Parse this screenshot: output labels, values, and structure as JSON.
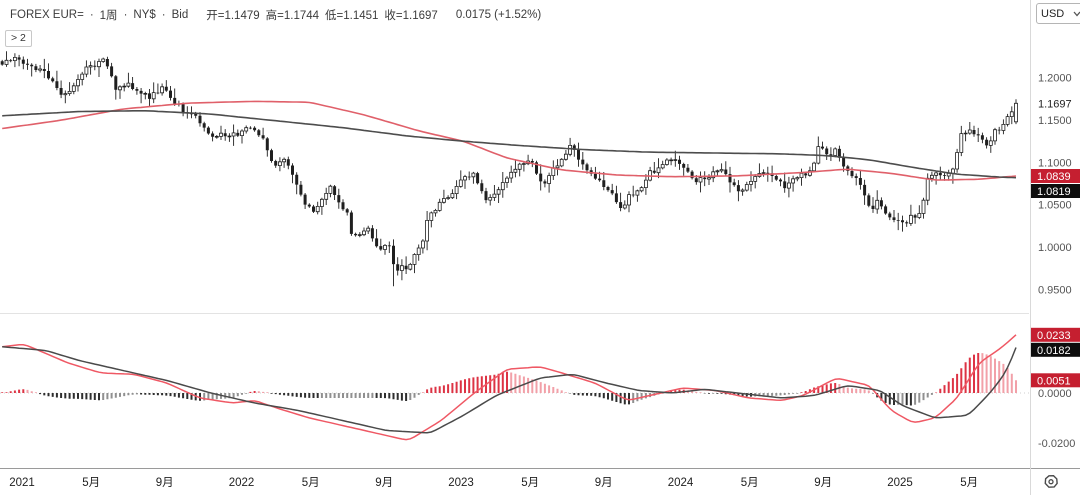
{
  "header": {
    "symbol": "FOREX EUR=",
    "separator": "·",
    "interval": "1周",
    "venue": "NY$",
    "side": "Bid",
    "open": "开=1.1479",
    "high": "高=1.1744",
    "low": "低=1.1451",
    "close": "收=1.1697",
    "change": "0.0175 (+1.52%)"
  },
  "currency_selector": {
    "value": "USD"
  },
  "panel_restore_button": {
    "label": "> 2"
  },
  "colors": {
    "header_text": "#3c3c3c",
    "axis_text": "#555555",
    "last_price_text": "#222222",
    "x_label_text": "#222222",
    "candle_stroke": "#1f1f1f",
    "candle_up_fill": "#ffffff",
    "candle_down_fill": "#1f1f1f",
    "ma_red": "#e0606a",
    "ma_black": "#4d4d4d",
    "macd_red": "#ef5864",
    "macd_black": "#4a4a4a",
    "hist_pos": "#dd3344",
    "hist_pos_pale": "#f2a0a8",
    "hist_neg": "#2e2e2e",
    "hist_neg_pale": "#909090",
    "badge_red_bg": "#c51f30",
    "badge_black_bg": "#0d0d0d",
    "badge_text": "#ffffff",
    "separator_line": "#e3e3e3",
    "bottom_axis_line": "#9a9a9a",
    "axis_divider": "#d9d9d9",
    "zero_line": "#cfcfcf"
  },
  "price_axis": {
    "ticks": [
      {
        "price": 1.2,
        "label": "1.2000"
      },
      {
        "price": 1.15,
        "label": "1.1500"
      },
      {
        "price": 1.1,
        "label": "1.1000"
      },
      {
        "price": 1.05,
        "label": "1.0500"
      },
      {
        "price": 1.0,
        "label": "1.0000"
      },
      {
        "price": 0.95,
        "label": "0.9500"
      }
    ],
    "last_price": {
      "price": 1.1697,
      "label": "1.1697"
    },
    "ma_badges": [
      {
        "price": 1.0839,
        "label": "1.0839",
        "bg": "red"
      },
      {
        "price": 1.0819,
        "label": "1.0819",
        "bg": "black"
      }
    ]
  },
  "macd_axis": {
    "badges": [
      {
        "value": 0.0233,
        "label": "0.0233",
        "bg": "red"
      },
      {
        "value": 0.0182,
        "label": "0.0182",
        "bg": "black"
      },
      {
        "value": 0.0051,
        "label": "0.0051",
        "bg": "red"
      }
    ],
    "ticks": [
      {
        "value": 0.0,
        "label": "0.0000"
      },
      {
        "value": -0.02,
        "label": "-0.0200"
      }
    ]
  },
  "x_axis": {
    "labels": [
      {
        "fy": 2021.04,
        "text": "2021"
      },
      {
        "fy": 2021.355,
        "text": "5月"
      },
      {
        "fy": 2021.69,
        "text": "9月"
      },
      {
        "fy": 2022.04,
        "text": "2022"
      },
      {
        "fy": 2022.355,
        "text": "5月"
      },
      {
        "fy": 2022.69,
        "text": "9月"
      },
      {
        "fy": 2023.04,
        "text": "2023"
      },
      {
        "fy": 2023.355,
        "text": "5月"
      },
      {
        "fy": 2023.69,
        "text": "9月"
      },
      {
        "fy": 2024.04,
        "text": "2024"
      },
      {
        "fy": 2024.355,
        "text": "5月"
      },
      {
        "fy": 2024.69,
        "text": "9月"
      },
      {
        "fy": 2025.04,
        "text": "2025"
      },
      {
        "fy": 2025.355,
        "text": "5月"
      }
    ]
  },
  "chart_data": {
    "type": "candlestick",
    "title": "FOREX EUR= 1周 NY$ Bid weekly candles with two moving averages and MACD",
    "x_domain_fy": [
      2020.95,
      2025.57
    ],
    "weeks_per_year": 52.18,
    "price_ylim": [
      0.94,
      1.25
    ],
    "macd_ylim": [
      -0.026,
      0.026
    ],
    "last_candle": {
      "open": 1.1479,
      "high": 1.1744,
      "low": 1.1451,
      "close": 1.1697
    },
    "low_overrides": [
      [
        2022.74,
        0.9536
      ]
    ],
    "weekly_close_anchors": [
      [
        2020.95,
        1.218
      ],
      [
        2021.01,
        1.225
      ],
      [
        2021.06,
        1.215
      ],
      [
        2021.1,
        1.212
      ],
      [
        2021.14,
        1.206
      ],
      [
        2021.17,
        1.197
      ],
      [
        2021.23,
        1.177
      ],
      [
        2021.28,
        1.19
      ],
      [
        2021.33,
        1.21
      ],
      [
        2021.38,
        1.216
      ],
      [
        2021.42,
        1.222
      ],
      [
        2021.47,
        1.186
      ],
      [
        2021.52,
        1.193
      ],
      [
        2021.55,
        1.187
      ],
      [
        2021.62,
        1.177
      ],
      [
        2021.68,
        1.188
      ],
      [
        2021.73,
        1.173
      ],
      [
        2021.78,
        1.16
      ],
      [
        2021.82,
        1.156
      ],
      [
        2021.86,
        1.145
      ],
      [
        2021.9,
        1.129
      ],
      [
        2021.94,
        1.132
      ],
      [
        2021.97,
        1.132
      ],
      [
        2022.04,
        1.134
      ],
      [
        2022.07,
        1.145
      ],
      [
        2022.11,
        1.135
      ],
      [
        2022.14,
        1.127
      ],
      [
        2022.19,
        1.093
      ],
      [
        2022.23,
        1.105
      ],
      [
        2022.28,
        1.081
      ],
      [
        2022.32,
        1.055
      ],
      [
        2022.37,
        1.041
      ],
      [
        2022.41,
        1.056
      ],
      [
        2022.44,
        1.072
      ],
      [
        2022.48,
        1.052
      ],
      [
        2022.52,
        1.043
      ],
      [
        2022.54,
        1.018
      ],
      [
        2022.57,
        1.009
      ],
      [
        2022.61,
        1.026
      ],
      [
        2022.65,
        1.004
      ],
      [
        2022.68,
        0.996
      ],
      [
        2022.71,
        1.004
      ],
      [
        2022.74,
        0.969
      ],
      [
        2022.77,
        0.98
      ],
      [
        2022.8,
        0.972
      ],
      [
        2022.84,
        0.996
      ],
      [
        2022.87,
        1.009
      ],
      [
        2022.89,
        1.035
      ],
      [
        2022.92,
        1.041
      ],
      [
        2022.95,
        1.054
      ],
      [
        2023.0,
        1.062
      ],
      [
        2023.05,
        1.083
      ],
      [
        2023.1,
        1.087
      ],
      [
        2023.15,
        1.055
      ],
      [
        2023.21,
        1.068
      ],
      [
        2023.26,
        1.084
      ],
      [
        2023.31,
        1.098
      ],
      [
        2023.36,
        1.102
      ],
      [
        2023.41,
        1.071
      ],
      [
        2023.46,
        1.091
      ],
      [
        2023.51,
        1.105
      ],
      [
        2023.54,
        1.122
      ],
      [
        2023.58,
        1.102
      ],
      [
        2023.64,
        1.086
      ],
      [
        2023.7,
        1.07
      ],
      [
        2023.74,
        1.059
      ],
      [
        2023.77,
        1.045
      ],
      [
        2023.81,
        1.062
      ],
      [
        2023.86,
        1.068
      ],
      [
        2023.9,
        1.091
      ],
      [
        2023.93,
        1.088
      ],
      [
        2023.96,
        1.098
      ],
      [
        2024.0,
        1.104
      ],
      [
        2024.05,
        1.095
      ],
      [
        2024.11,
        1.077
      ],
      [
        2024.17,
        1.084
      ],
      [
        2024.22,
        1.094
      ],
      [
        2024.26,
        1.079
      ],
      [
        2024.31,
        1.064
      ],
      [
        2024.36,
        1.077
      ],
      [
        2024.4,
        1.087
      ],
      [
        2024.44,
        1.085
      ],
      [
        2024.48,
        1.08
      ],
      [
        2024.52,
        1.069
      ],
      [
        2024.56,
        1.084
      ],
      [
        2024.6,
        1.085
      ],
      [
        2024.64,
        1.091
      ],
      [
        2024.67,
        1.119
      ],
      [
        2024.72,
        1.109
      ],
      [
        2024.75,
        1.116
      ],
      [
        2024.78,
        1.097
      ],
      [
        2024.83,
        1.083
      ],
      [
        2024.86,
        1.072
      ],
      [
        2024.89,
        1.054
      ],
      [
        2024.91,
        1.042
      ],
      [
        2024.94,
        1.057
      ],
      [
        2024.96,
        1.043
      ],
      [
        2025.02,
        1.031
      ],
      [
        2025.06,
        1.027
      ],
      [
        2025.09,
        1.036
      ],
      [
        2025.13,
        1.038
      ],
      [
        2025.17,
        1.083
      ],
      [
        2025.21,
        1.088
      ],
      [
        2025.25,
        1.082
      ],
      [
        2025.29,
        1.095
      ],
      [
        2025.32,
        1.136
      ],
      [
        2025.36,
        1.136
      ],
      [
        2025.4,
        1.13
      ],
      [
        2025.44,
        1.117
      ],
      [
        2025.47,
        1.136
      ],
      [
        2025.5,
        1.14
      ],
      [
        2025.53,
        1.155
      ],
      [
        2025.57,
        1.1697
      ]
    ],
    "ma_red_anchors": [
      [
        2020.95,
        1.14
      ],
      [
        2021.2,
        1.149
      ],
      [
        2021.5,
        1.163
      ],
      [
        2021.8,
        1.17
      ],
      [
        2022.1,
        1.172
      ],
      [
        2022.35,
        1.171
      ],
      [
        2022.6,
        1.156
      ],
      [
        2022.85,
        1.137
      ],
      [
        2023.05,
        1.125
      ],
      [
        2023.25,
        1.105
      ],
      [
        2023.5,
        1.091
      ],
      [
        2023.75,
        1.085
      ],
      [
        2024.0,
        1.083
      ],
      [
        2024.3,
        1.084
      ],
      [
        2024.6,
        1.088
      ],
      [
        2024.8,
        1.092
      ],
      [
        2025.0,
        1.087
      ],
      [
        2025.2,
        1.079
      ],
      [
        2025.4,
        1.08
      ],
      [
        2025.57,
        1.0839
      ]
    ],
    "ma_black_anchors": [
      [
        2020.95,
        1.155
      ],
      [
        2021.3,
        1.16
      ],
      [
        2021.6,
        1.161
      ],
      [
        2021.9,
        1.157
      ],
      [
        2022.2,
        1.149
      ],
      [
        2022.5,
        1.141
      ],
      [
        2022.8,
        1.131
      ],
      [
        2023.05,
        1.125
      ],
      [
        2023.3,
        1.12
      ],
      [
        2023.6,
        1.115
      ],
      [
        2023.9,
        1.112
      ],
      [
        2024.2,
        1.111
      ],
      [
        2024.5,
        1.11
      ],
      [
        2024.7,
        1.108
      ],
      [
        2024.9,
        1.103
      ],
      [
        2025.1,
        1.094
      ],
      [
        2025.3,
        1.086
      ],
      [
        2025.5,
        1.0825
      ],
      [
        2025.57,
        1.0819
      ]
    ],
    "ma_red_last": 1.0839,
    "ma_black_last": 1.0819,
    "macd": {
      "line_red_anchors": [
        [
          2020.95,
          0.0185
        ],
        [
          2021.05,
          0.0195
        ],
        [
          2021.25,
          0.012
        ],
        [
          2021.4,
          0.008
        ],
        [
          2021.55,
          0.0075
        ],
        [
          2021.7,
          0.004
        ],
        [
          2021.85,
          -0.002
        ],
        [
          2022.0,
          -0.004
        ],
        [
          2022.1,
          -0.003
        ],
        [
          2022.2,
          -0.006
        ],
        [
          2022.35,
          -0.01
        ],
        [
          2022.5,
          -0.013
        ],
        [
          2022.65,
          -0.016
        ],
        [
          2022.8,
          -0.019
        ],
        [
          2022.95,
          -0.011
        ],
        [
          2023.1,
          0.0
        ],
        [
          2023.25,
          0.0095
        ],
        [
          2023.4,
          0.0105
        ],
        [
          2023.5,
          0.008
        ],
        [
          2023.65,
          0.004
        ],
        [
          2023.8,
          -0.003
        ],
        [
          2023.95,
          0.0
        ],
        [
          2024.05,
          0.002
        ],
        [
          2024.2,
          0.001
        ],
        [
          2024.35,
          -0.002
        ],
        [
          2024.5,
          -0.003
        ],
        [
          2024.6,
          -0.001
        ],
        [
          2024.75,
          0.006
        ],
        [
          2024.9,
          0.003
        ],
        [
          2025.0,
          -0.007
        ],
        [
          2025.1,
          -0.012
        ],
        [
          2025.2,
          -0.01
        ],
        [
          2025.3,
          -0.002
        ],
        [
          2025.4,
          0.012
        ],
        [
          2025.5,
          0.018
        ],
        [
          2025.57,
          0.0233
        ]
      ],
      "line_black_anchors": [
        [
          2020.95,
          0.0185
        ],
        [
          2021.15,
          0.017
        ],
        [
          2021.3,
          0.013
        ],
        [
          2021.5,
          0.009
        ],
        [
          2021.7,
          0.005
        ],
        [
          2021.9,
          0.0
        ],
        [
          2022.1,
          -0.004
        ],
        [
          2022.3,
          -0.007
        ],
        [
          2022.5,
          -0.011
        ],
        [
          2022.7,
          -0.015
        ],
        [
          2022.9,
          -0.016
        ],
        [
          2023.05,
          -0.009
        ],
        [
          2023.2,
          -0.001
        ],
        [
          2023.4,
          0.006
        ],
        [
          2023.55,
          0.0075
        ],
        [
          2023.7,
          0.004
        ],
        [
          2023.85,
          0.001
        ],
        [
          2024.0,
          0.0
        ],
        [
          2024.15,
          0.0015
        ],
        [
          2024.3,
          0.0
        ],
        [
          2024.5,
          -0.002
        ],
        [
          2024.65,
          -0.001
        ],
        [
          2024.8,
          0.003
        ],
        [
          2024.95,
          0.001
        ],
        [
          2025.05,
          -0.005
        ],
        [
          2025.2,
          -0.01
        ],
        [
          2025.35,
          -0.009
        ],
        [
          2025.45,
          0.0
        ],
        [
          2025.52,
          0.008
        ],
        [
          2025.57,
          0.0182
        ]
      ],
      "last_red": 0.0233,
      "last_black": 0.0182,
      "last_hist": 0.0051
    }
  }
}
